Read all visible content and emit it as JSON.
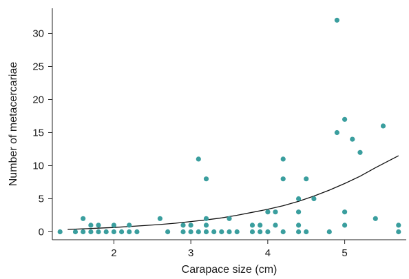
{
  "chart_data": {
    "type": "scatter",
    "xlabel": "Carapace size (cm)",
    "ylabel": "Number of metacercariae",
    "xlim": [
      1.2,
      5.8
    ],
    "ylim": [
      -1.2,
      33.8
    ],
    "x_ticks": [
      2,
      3,
      4,
      5
    ],
    "y_ticks": [
      0,
      5,
      10,
      15,
      20,
      25,
      30
    ],
    "grid": false,
    "legend": "none",
    "point_color": "#3a9e9e",
    "curve_color": "#111111",
    "series": [
      {
        "points": [
          [
            1.3,
            0
          ],
          [
            1.5,
            0
          ],
          [
            1.6,
            2
          ],
          [
            1.6,
            0
          ],
          [
            1.7,
            1
          ],
          [
            1.7,
            0
          ],
          [
            1.8,
            1
          ],
          [
            1.8,
            0
          ],
          [
            1.9,
            0
          ],
          [
            2.0,
            1
          ],
          [
            2.0,
            0
          ],
          [
            2.1,
            0
          ],
          [
            2.2,
            1
          ],
          [
            2.2,
            0
          ],
          [
            2.3,
            0
          ],
          [
            2.6,
            2
          ],
          [
            2.7,
            0
          ],
          [
            2.9,
            1
          ],
          [
            2.9,
            0
          ],
          [
            3.0,
            1
          ],
          [
            3.0,
            0
          ],
          [
            3.1,
            11
          ],
          [
            3.1,
            0
          ],
          [
            3.2,
            8
          ],
          [
            3.2,
            2
          ],
          [
            3.2,
            1
          ],
          [
            3.2,
            0
          ],
          [
            3.3,
            0
          ],
          [
            3.4,
            0
          ],
          [
            3.5,
            2
          ],
          [
            3.5,
            0
          ],
          [
            3.6,
            0
          ],
          [
            3.8,
            1
          ],
          [
            3.8,
            0
          ],
          [
            3.9,
            1
          ],
          [
            3.9,
            0
          ],
          [
            4.0,
            3
          ],
          [
            4.0,
            0
          ],
          [
            4.1,
            3
          ],
          [
            4.1,
            1
          ],
          [
            4.2,
            11
          ],
          [
            4.2,
            8
          ],
          [
            4.2,
            0
          ],
          [
            4.4,
            5
          ],
          [
            4.4,
            3
          ],
          [
            4.4,
            1
          ],
          [
            4.4,
            0
          ],
          [
            4.5,
            8
          ],
          [
            4.5,
            0
          ],
          [
            4.6,
            5
          ],
          [
            4.8,
            0
          ],
          [
            4.9,
            32
          ],
          [
            4.9,
            15
          ],
          [
            5.0,
            17
          ],
          [
            5.0,
            3
          ],
          [
            5.0,
            1
          ],
          [
            5.1,
            14
          ],
          [
            5.2,
            12
          ],
          [
            5.4,
            2
          ],
          [
            5.5,
            16
          ],
          [
            5.7,
            1
          ],
          [
            5.7,
            0
          ]
        ]
      }
    ],
    "fit_curve": {
      "x": [
        1.4,
        1.6,
        1.8,
        2.0,
        2.2,
        2.4,
        2.6,
        2.8,
        3.0,
        3.2,
        3.4,
        3.6,
        3.8,
        4.0,
        4.2,
        4.4,
        4.6,
        4.8,
        5.0,
        5.2,
        5.4,
        5.7
      ],
      "y": [
        0.35,
        0.45,
        0.55,
        0.65,
        0.8,
        0.95,
        1.1,
        1.3,
        1.55,
        1.8,
        2.1,
        2.5,
        2.95,
        3.4,
        3.95,
        4.6,
        5.4,
        6.3,
        7.3,
        8.4,
        9.7,
        11.5
      ]
    }
  }
}
